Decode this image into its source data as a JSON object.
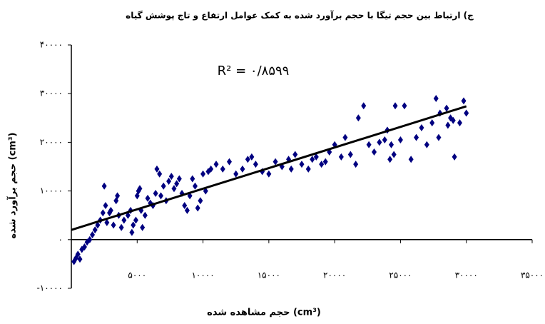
{
  "chart_data": {
    "type": "scatter",
    "title": "ج) ارتباط بین حجم تیگا با حجم برآورد شده به کمک عوامل ارتفاع و تاج پوشش گیاه",
    "x_label": "حجم مشاهده شده (cm³)",
    "y_label": "حجم برآورد شده (cm³)",
    "annotation": "R² = ۰/۸۵۹۹",
    "xlim": [
      0,
      35000
    ],
    "ylim": [
      -10000,
      40000
    ],
    "xticks": [
      {
        "value": 5000,
        "label": "۵۰۰۰"
      },
      {
        "value": 10000,
        "label": "۱۰۰۰۰"
      },
      {
        "value": 15000,
        "label": "۱۵۰۰۰"
      },
      {
        "value": 20000,
        "label": "۲۰۰۰۰"
      },
      {
        "value": 25000,
        "label": "۲۵۰۰۰"
      },
      {
        "value": 30000,
        "label": "۳۰۰۰۰"
      },
      {
        "value": 35000,
        "label": "۳۵۰۰۰"
      }
    ],
    "yticks": [
      {
        "value": -10000,
        "label": "-۱۰۰۰۰"
      },
      {
        "value": 0,
        "label": "۰"
      },
      {
        "value": 10000,
        "label": "۱۰۰۰۰"
      },
      {
        "value": 20000,
        "label": "۲۰۰۰۰"
      },
      {
        "value": 30000,
        "label": "۳۰۰۰۰"
      },
      {
        "value": 40000,
        "label": "۴۰۰۰۰"
      }
    ],
    "x": [
      200,
      350,
      500,
      650,
      800,
      1000,
      1200,
      1400,
      1600,
      1800,
      2000,
      2200,
      2400,
      2500,
      2600,
      2700,
      2900,
      3000,
      3200,
      3400,
      3500,
      3600,
      3800,
      4000,
      4300,
      4500,
      4600,
      4700,
      4900,
      5000,
      5100,
      5200,
      5300,
      5400,
      5600,
      5800,
      6000,
      6200,
      6400,
      6500,
      6700,
      6800,
      7000,
      7200,
      7400,
      7600,
      7800,
      8000,
      8200,
      8400,
      8600,
      8800,
      9000,
      9200,
      9400,
      9600,
      9800,
      10000,
      10200,
      10400,
      10600,
      11000,
      11500,
      12000,
      12500,
      13000,
      13400,
      13700,
      14000,
      14500,
      15000,
      15500,
      16000,
      16500,
      16700,
      17000,
      17500,
      18000,
      18300,
      18600,
      19000,
      19300,
      19600,
      20000,
      20500,
      20800,
      21200,
      21600,
      21800,
      22200,
      22600,
      23000,
      23400,
      23800,
      24000,
      24200,
      24300,
      24500,
      24600,
      25000,
      25300,
      25800,
      26200,
      26600,
      27000,
      27400,
      27700,
      27900,
      28000,
      28500,
      28600,
      28800,
      29000,
      29100,
      29500,
      29800,
      30000
    ],
    "series": [
      {
        "color": "#000080",
        "values": [
          -4500,
          -3800,
          -3000,
          -4000,
          -2000,
          -1500,
          -500,
          0,
          1000,
          2000,
          3000,
          4000,
          5500,
          11000,
          7000,
          3500,
          5500,
          6000,
          3000,
          8000,
          9000,
          5000,
          2500,
          4000,
          5000,
          6000,
          1500,
          3000,
          4000,
          9000,
          10000,
          10500,
          6000,
          2500,
          5000,
          8500,
          7500,
          7000,
          9500,
          14500,
          13500,
          9000,
          11000,
          8000,
          12000,
          13000,
          10500,
          11500,
          12500,
          9500,
          7000,
          6000,
          9000,
          12500,
          11000,
          6500,
          8000,
          13500,
          10000,
          14000,
          14500,
          15500,
          14500,
          16000,
          13500,
          14500,
          16500,
          17000,
          15500,
          14000,
          13500,
          16000,
          15000,
          16500,
          14500,
          17500,
          15500,
          14500,
          16500,
          17000,
          15500,
          16000,
          18000,
          19500,
          17000,
          21000,
          17500,
          15500,
          25000,
          27500,
          19500,
          18000,
          20000,
          20500,
          22500,
          16500,
          19500,
          17500,
          27500,
          20500,
          27500,
          16500,
          21000,
          23000,
          19500,
          24000,
          29000,
          21000,
          26000,
          27000,
          23500,
          25000,
          24500,
          17000,
          24000,
          28500,
          26000
        ]
      }
    ],
    "trendline": {
      "color": "#000000",
      "x": [
        0,
        30000
      ],
      "values": [
        2000,
        27400
      ]
    }
  }
}
